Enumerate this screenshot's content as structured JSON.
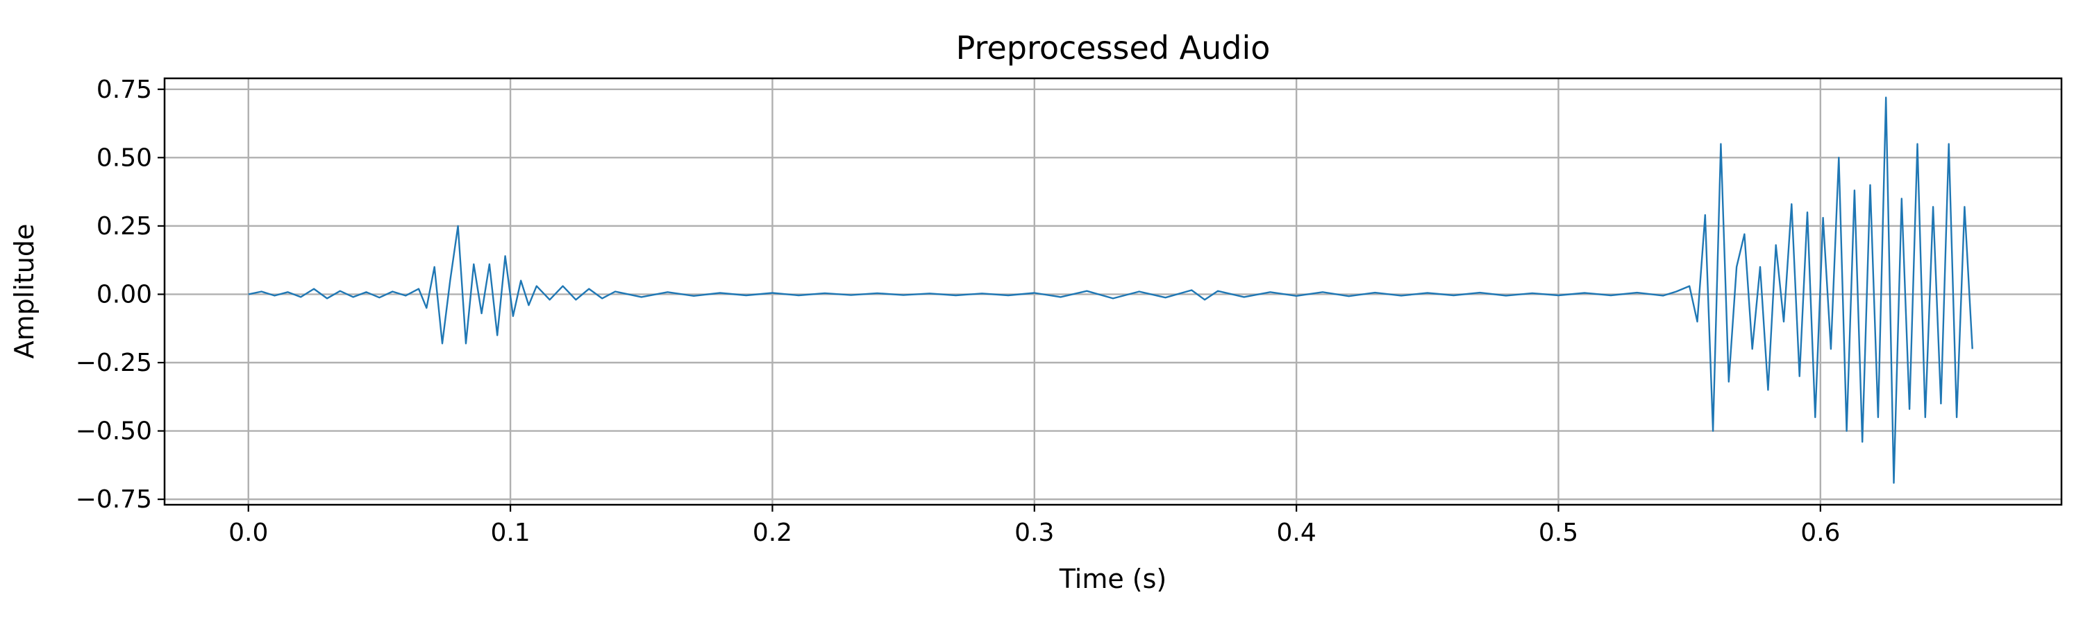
{
  "chart_data": {
    "type": "line",
    "title": "Preprocessed Audio",
    "xlabel": "Time (s)",
    "ylabel": "Amplitude",
    "xlim": [
      -0.032,
      0.692
    ],
    "ylim": [
      -0.77,
      0.79
    ],
    "xticks": [
      0.0,
      0.1,
      0.2,
      0.3,
      0.4,
      0.5,
      0.6
    ],
    "xtick_labels": [
      "0.0",
      "0.1",
      "0.2",
      "0.3",
      "0.4",
      "0.5",
      "0.6"
    ],
    "yticks": [
      0.75,
      0.5,
      0.25,
      0.0,
      -0.25,
      -0.5,
      -0.75
    ],
    "ytick_labels": [
      "0.75",
      "0.50",
      "0.25",
      "0.00",
      "−0.25",
      "−0.50",
      "−0.75"
    ],
    "grid": true,
    "line_color": "#1f77b4",
    "series": [
      {
        "x": [
          0.0,
          0.005,
          0.01,
          0.015,
          0.02,
          0.025,
          0.03,
          0.035,
          0.04,
          0.045,
          0.05,
          0.055,
          0.06,
          0.065,
          0.068,
          0.071,
          0.074,
          0.077,
          0.08,
          0.083,
          0.086,
          0.089,
          0.092,
          0.095,
          0.098,
          0.101,
          0.104,
          0.107,
          0.11,
          0.115,
          0.12,
          0.125,
          0.13,
          0.135,
          0.14,
          0.15,
          0.16,
          0.17,
          0.18,
          0.19,
          0.2,
          0.21,
          0.22,
          0.23,
          0.24,
          0.25,
          0.26,
          0.27,
          0.28,
          0.29,
          0.3,
          0.31,
          0.32,
          0.33,
          0.34,
          0.35,
          0.36,
          0.365,
          0.37,
          0.38,
          0.39,
          0.4,
          0.41,
          0.42,
          0.43,
          0.44,
          0.45,
          0.46,
          0.47,
          0.48,
          0.49,
          0.5,
          0.51,
          0.52,
          0.53,
          0.54,
          0.545,
          0.55,
          0.553,
          0.556,
          0.559,
          0.562,
          0.565,
          0.568,
          0.571,
          0.574,
          0.577,
          0.58,
          0.583,
          0.586,
          0.589,
          0.592,
          0.595,
          0.598,
          0.601,
          0.604,
          0.607,
          0.61,
          0.613,
          0.616,
          0.619,
          0.622,
          0.625,
          0.628,
          0.631,
          0.634,
          0.637,
          0.64,
          0.643,
          0.646,
          0.649,
          0.652,
          0.655,
          0.658
        ],
        "y": [
          0.0,
          0.01,
          -0.005,
          0.008,
          -0.01,
          0.02,
          -0.015,
          0.012,
          -0.01,
          0.008,
          -0.012,
          0.01,
          -0.005,
          0.02,
          -0.05,
          0.1,
          -0.18,
          0.05,
          0.25,
          -0.18,
          0.11,
          -0.07,
          0.11,
          -0.15,
          0.14,
          -0.08,
          0.05,
          -0.04,
          0.03,
          -0.02,
          0.03,
          -0.02,
          0.02,
          -0.015,
          0.01,
          -0.01,
          0.008,
          -0.006,
          0.005,
          -0.004,
          0.005,
          -0.004,
          0.004,
          -0.003,
          0.004,
          -0.003,
          0.003,
          -0.004,
          0.003,
          -0.004,
          0.005,
          -0.01,
          0.012,
          -0.015,
          0.01,
          -0.012,
          0.015,
          -0.02,
          0.012,
          -0.01,
          0.008,
          -0.006,
          0.008,
          -0.007,
          0.006,
          -0.005,
          0.005,
          -0.004,
          0.006,
          -0.005,
          0.004,
          -0.004,
          0.005,
          -0.004,
          0.006,
          -0.005,
          0.01,
          0.03,
          -0.1,
          0.29,
          -0.5,
          0.55,
          -0.32,
          0.1,
          0.22,
          -0.2,
          0.1,
          -0.35,
          0.18,
          -0.1,
          0.33,
          -0.3,
          0.3,
          -0.45,
          0.28,
          -0.2,
          0.5,
          -0.5,
          0.38,
          -0.54,
          0.4,
          -0.45,
          0.72,
          -0.69,
          0.35,
          -0.42,
          0.55,
          -0.45,
          0.32,
          -0.4,
          0.55,
          -0.45,
          0.32,
          -0.2
        ]
      }
    ]
  }
}
